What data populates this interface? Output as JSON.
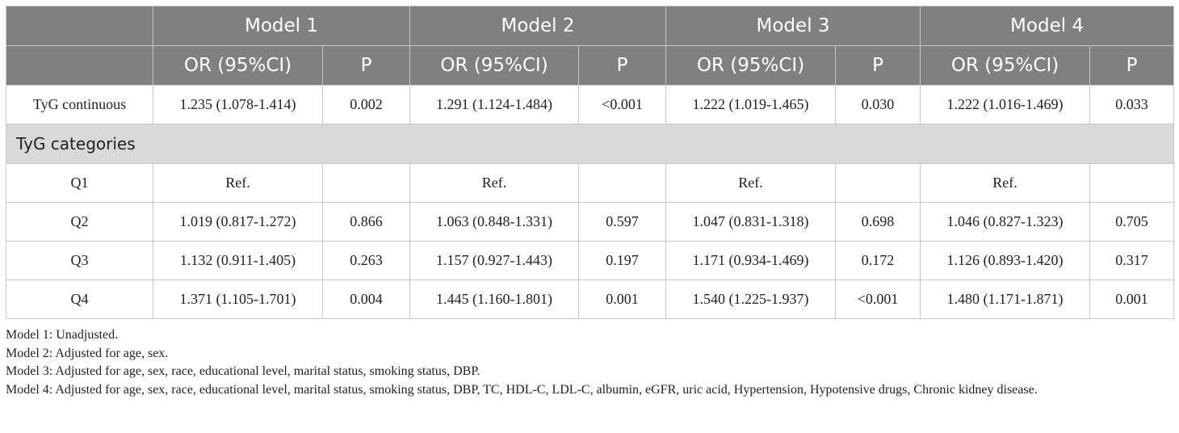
{
  "header": {
    "models": [
      "Model 1",
      "Model 2",
      "Model 3",
      "Model 4"
    ],
    "or_label": "OR (95%CI)",
    "p_label": "P"
  },
  "rows": {
    "continuous": {
      "label": "TyG continuous",
      "cells": [
        "1.235 (1.078-1.414)",
        "0.002",
        "1.291 (1.124-1.484)",
        "<0.001",
        "1.222 (1.019-1.465)",
        "0.030",
        "1.222 (1.016-1.469)",
        "0.033"
      ]
    },
    "section_label": "TyG categories",
    "quartiles": [
      {
        "label": "Q1",
        "cells": [
          "Ref.",
          "",
          "Ref.",
          "",
          "Ref.",
          "",
          "Ref.",
          ""
        ]
      },
      {
        "label": "Q2",
        "cells": [
          "1.019 (0.817-1.272)",
          "0.866",
          "1.063 (0.848-1.331)",
          "0.597",
          "1.047 (0.831-1.318)",
          "0.698",
          "1.046 (0.827-1.323)",
          "0.705"
        ]
      },
      {
        "label": "Q3",
        "cells": [
          "1.132 (0.911-1.405)",
          "0.263",
          "1.157 (0.927-1.443)",
          "0.197",
          "1.171 (0.934-1.469)",
          "0.172",
          "1.126 (0.893-1.420)",
          "0.317"
        ]
      },
      {
        "label": "Q4",
        "cells": [
          "1.371 (1.105-1.701)",
          "0.004",
          "1.445 (1.160-1.801)",
          "0.001",
          "1.540 (1.225-1.937)",
          "<0.001",
          "1.480 (1.171-1.871)",
          "0.001"
        ]
      }
    ]
  },
  "notes": [
    "Model 1: Unadjusted.",
    "Model 2: Adjusted for age, sex.",
    "Model 3: Adjusted for age, sex, race, educational level, marital status, smoking status, DBP.",
    "Model 4: Adjusted for age, sex, race, educational level, marital status, smoking status, DBP, TC, HDL-C, LDL-C, albumin, eGFR, uric acid, Hypertension, Hypotensive drugs, Chronic kidney disease."
  ]
}
